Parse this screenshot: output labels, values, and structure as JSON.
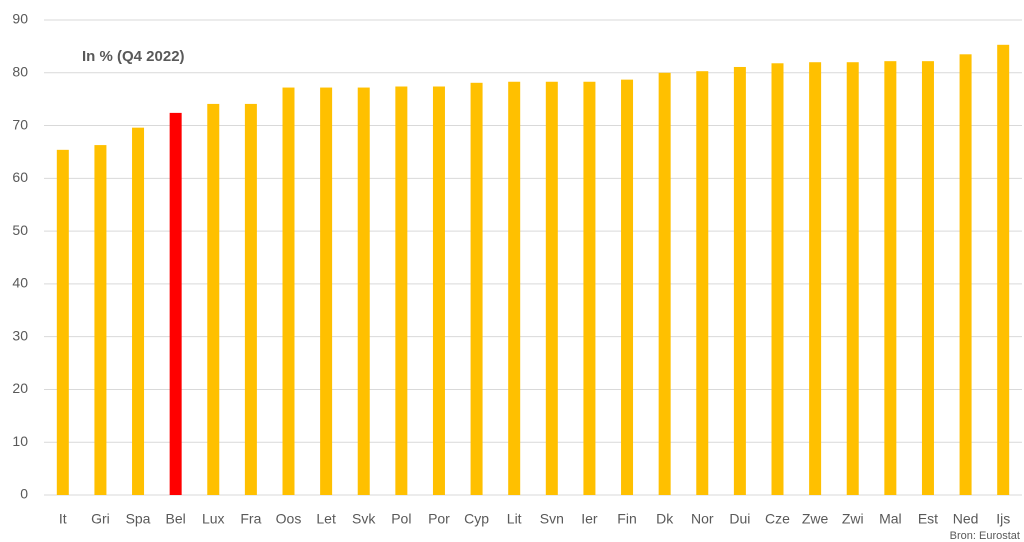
{
  "chart_data": {
    "type": "bar",
    "annotation": "In % (Q4 2022)",
    "source": "Bron: Eurostat",
    "categories": [
      "It",
      "Gri",
      "Spa",
      "Bel",
      "Lux",
      "Fra",
      "Oos",
      "Let",
      "Svk",
      "Pol",
      "Por",
      "Cyp",
      "Lit",
      "Svn",
      "Ier",
      "Fin",
      "Dk",
      "Nor",
      "Dui",
      "Cze",
      "Zwe",
      "Zwi",
      "Mal",
      "Est",
      "Ned",
      "Ijs"
    ],
    "values": [
      65.4,
      66.3,
      69.6,
      72.4,
      74.1,
      74.1,
      77.2,
      77.2,
      77.2,
      77.4,
      77.4,
      78.1,
      78.3,
      78.3,
      78.3,
      78.7,
      80.0,
      80.3,
      81.1,
      81.8,
      82.0,
      82.0,
      82.2,
      82.2,
      83.5,
      85.3
    ],
    "colors": [
      "#ffc000",
      "#ffc000",
      "#ffc000",
      "#ff0000",
      "#ffc000",
      "#ffc000",
      "#ffc000",
      "#ffc000",
      "#ffc000",
      "#ffc000",
      "#ffc000",
      "#ffc000",
      "#ffc000",
      "#ffc000",
      "#ffc000",
      "#ffc000",
      "#ffc000",
      "#ffc000",
      "#ffc000",
      "#ffc000",
      "#ffc000",
      "#ffc000",
      "#ffc000",
      "#ffc000",
      "#ffc000",
      "#ffc000"
    ],
    "ylim": [
      0,
      90
    ],
    "yticks": [
      0,
      10,
      20,
      30,
      40,
      50,
      60,
      70,
      80,
      90
    ],
    "grid": true
  }
}
